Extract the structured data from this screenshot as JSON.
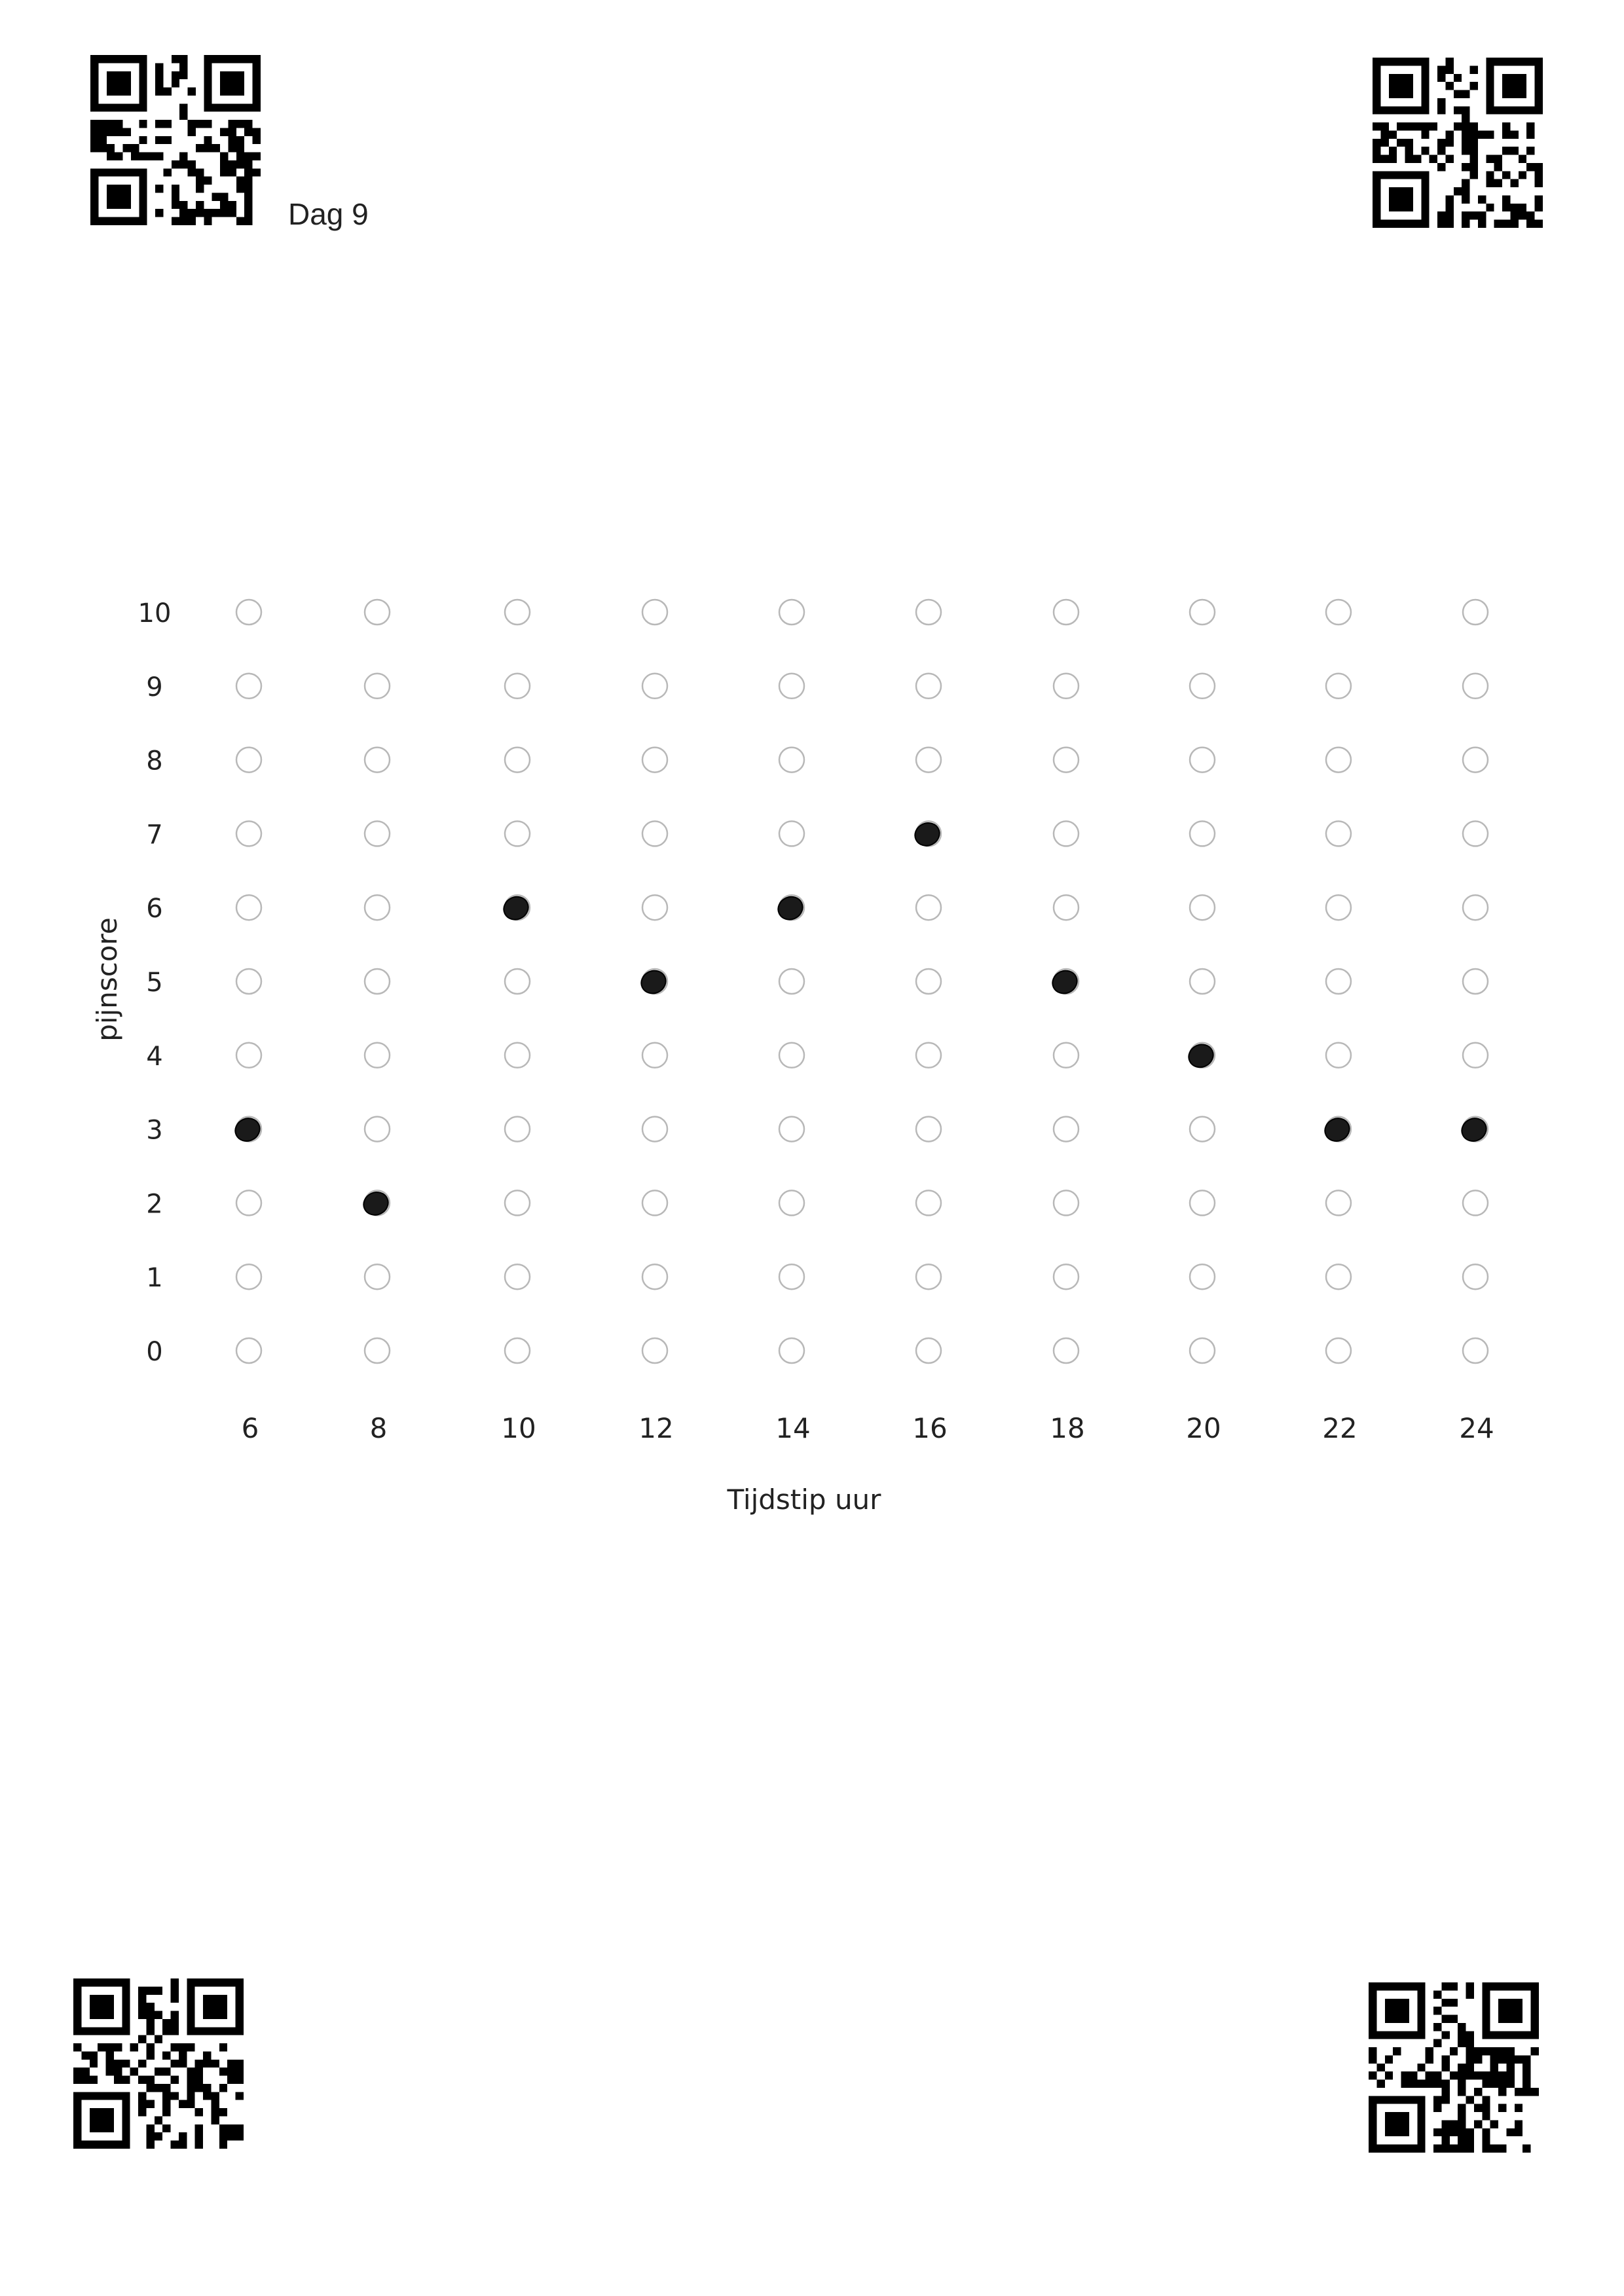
{
  "page": {
    "day_label": "Dag 9"
  },
  "chart_data": {
    "type": "scatter",
    "title": "",
    "xlabel": "Tijdstip uur",
    "ylabel": "pijnscore",
    "x": [
      6,
      8,
      10,
      12,
      14,
      16,
      18,
      20,
      22,
      24
    ],
    "y": [
      3,
      2,
      6,
      5,
      6,
      7,
      5,
      4,
      3,
      3
    ],
    "x_ticks": [
      "6",
      "8",
      "10",
      "12",
      "14",
      "16",
      "18",
      "20",
      "22",
      "24"
    ],
    "y_ticks": [
      "0",
      "1",
      "2",
      "3",
      "4",
      "5",
      "6",
      "7",
      "8",
      "9",
      "10"
    ],
    "xlim": [
      6,
      24
    ],
    "ylim": [
      0,
      10
    ],
    "grid": "empty answer circle at every hour/score position",
    "marker_color": "#1a1a1a",
    "empty_circle_color": "#b8b8b8"
  }
}
